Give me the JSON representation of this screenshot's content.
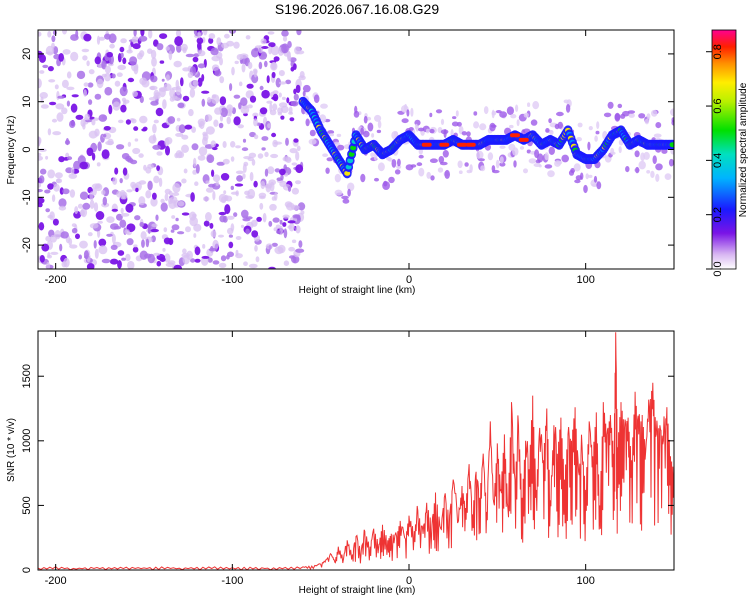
{
  "chart_data": [
    {
      "type": "heatmap",
      "title": "S196.2026.067.16.08.G29",
      "xlabel": "Height of straight line (km)",
      "ylabel": "Frequency (Hz)",
      "xlim": [
        -210,
        150
      ],
      "ylim": [
        -25,
        25
      ],
      "xticks": [
        -200,
        -100,
        0,
        100
      ],
      "yticks": [
        -20,
        -10,
        0,
        10,
        20
      ],
      "noise_region_x": [
        -210,
        -60
      ],
      "ridge": {
        "x": [
          -60,
          -55,
          -50,
          -45,
          -40,
          -35,
          -30,
          -25,
          -20,
          -15,
          -10,
          -5,
          0,
          5,
          10,
          15,
          20,
          25,
          30,
          35,
          40,
          45,
          50,
          55,
          60,
          65,
          70,
          75,
          80,
          85,
          90,
          95,
          100,
          105,
          110,
          115,
          120,
          125,
          130,
          135,
          140,
          145,
          150
        ],
        "y": [
          10,
          8,
          4,
          1,
          -2,
          -5,
          3,
          0,
          1,
          -1,
          0,
          2,
          3,
          1,
          1,
          1,
          1,
          2,
          1,
          1,
          1,
          2,
          2,
          2,
          3,
          2,
          3,
          1,
          2,
          1,
          4,
          -1,
          -2,
          -2,
          0,
          3,
          4,
          1,
          2,
          1,
          1,
          1,
          1
        ]
      },
      "colorbar": {
        "label": "Normalized spectral amplitude",
        "range": [
          0.0,
          0.88
        ],
        "ticks": [
          "0.0",
          "0.2",
          "0.4",
          "0.6",
          "0.8"
        ]
      }
    },
    {
      "type": "line",
      "xlabel": "Height of straight line (km)",
      "ylabel": "SNR (10 * v/v)",
      "xlim": [
        -210,
        150
      ],
      "ylim": [
        0,
        1850
      ],
      "xticks": [
        -200,
        -100,
        0,
        100
      ],
      "yticks": [
        0,
        500,
        1000,
        1500
      ],
      "series": [
        {
          "name": "SNR",
          "color": "#ee3333",
          "x": [
            -210,
            -200,
            -190,
            -180,
            -170,
            -160,
            -150,
            -140,
            -130,
            -120,
            -110,
            -100,
            -90,
            -80,
            -70,
            -60,
            -55,
            -50,
            -47,
            -44,
            -42,
            -40,
            -37,
            -35,
            -32,
            -30,
            -27,
            -25,
            -22,
            -20,
            -17,
            -15,
            -12,
            -10,
            -7,
            -5,
            -2,
            0,
            3,
            5,
            8,
            10,
            13,
            15,
            18,
            20,
            23,
            25,
            28,
            30,
            32,
            34,
            36,
            38,
            40,
            42,
            44,
            46,
            48,
            50,
            52,
            54,
            56,
            58,
            60,
            62,
            64,
            66,
            68,
            70,
            72,
            74,
            76,
            78,
            80,
            82,
            84,
            86,
            88,
            90,
            92,
            94,
            96,
            98,
            100,
            102,
            104,
            106,
            108,
            110,
            112,
            114,
            116,
            117,
            118,
            120,
            122,
            124,
            126,
            128,
            130,
            132,
            134,
            136,
            138,
            140,
            142,
            144,
            146,
            148,
            150
          ],
          "values": [
            15,
            25,
            12,
            20,
            18,
            22,
            16,
            24,
            14,
            20,
            25,
            18,
            22,
            15,
            20,
            25,
            30,
            45,
            80,
            120,
            60,
            180,
            90,
            230,
            120,
            260,
            150,
            300,
            180,
            320,
            200,
            350,
            230,
            280,
            260,
            380,
            240,
            420,
            300,
            460,
            280,
            520,
            350,
            600,
            320,
            560,
            420,
            700,
            380,
            650,
            480,
            820,
            430,
            760,
            560,
            900,
            450,
            1150,
            520,
            980,
            620,
            1050,
            480,
            1300,
            700,
            1120,
            560,
            1000,
            780,
            1350,
            620,
            1100,
            850,
            1250,
            540,
            1120,
            900,
            1180,
            700,
            1050,
            1000,
            1260,
            760,
            950,
            620,
            1150,
            880,
            1220,
            500,
            1300,
            1050,
            1200,
            900,
            1840,
            950,
            1300,
            1100,
            1180,
            850,
            1380,
            1050,
            1200,
            920,
            1260,
            1450,
            1050,
            1120,
            1000,
            1260,
            880,
            760
          ]
        }
      ]
    }
  ]
}
